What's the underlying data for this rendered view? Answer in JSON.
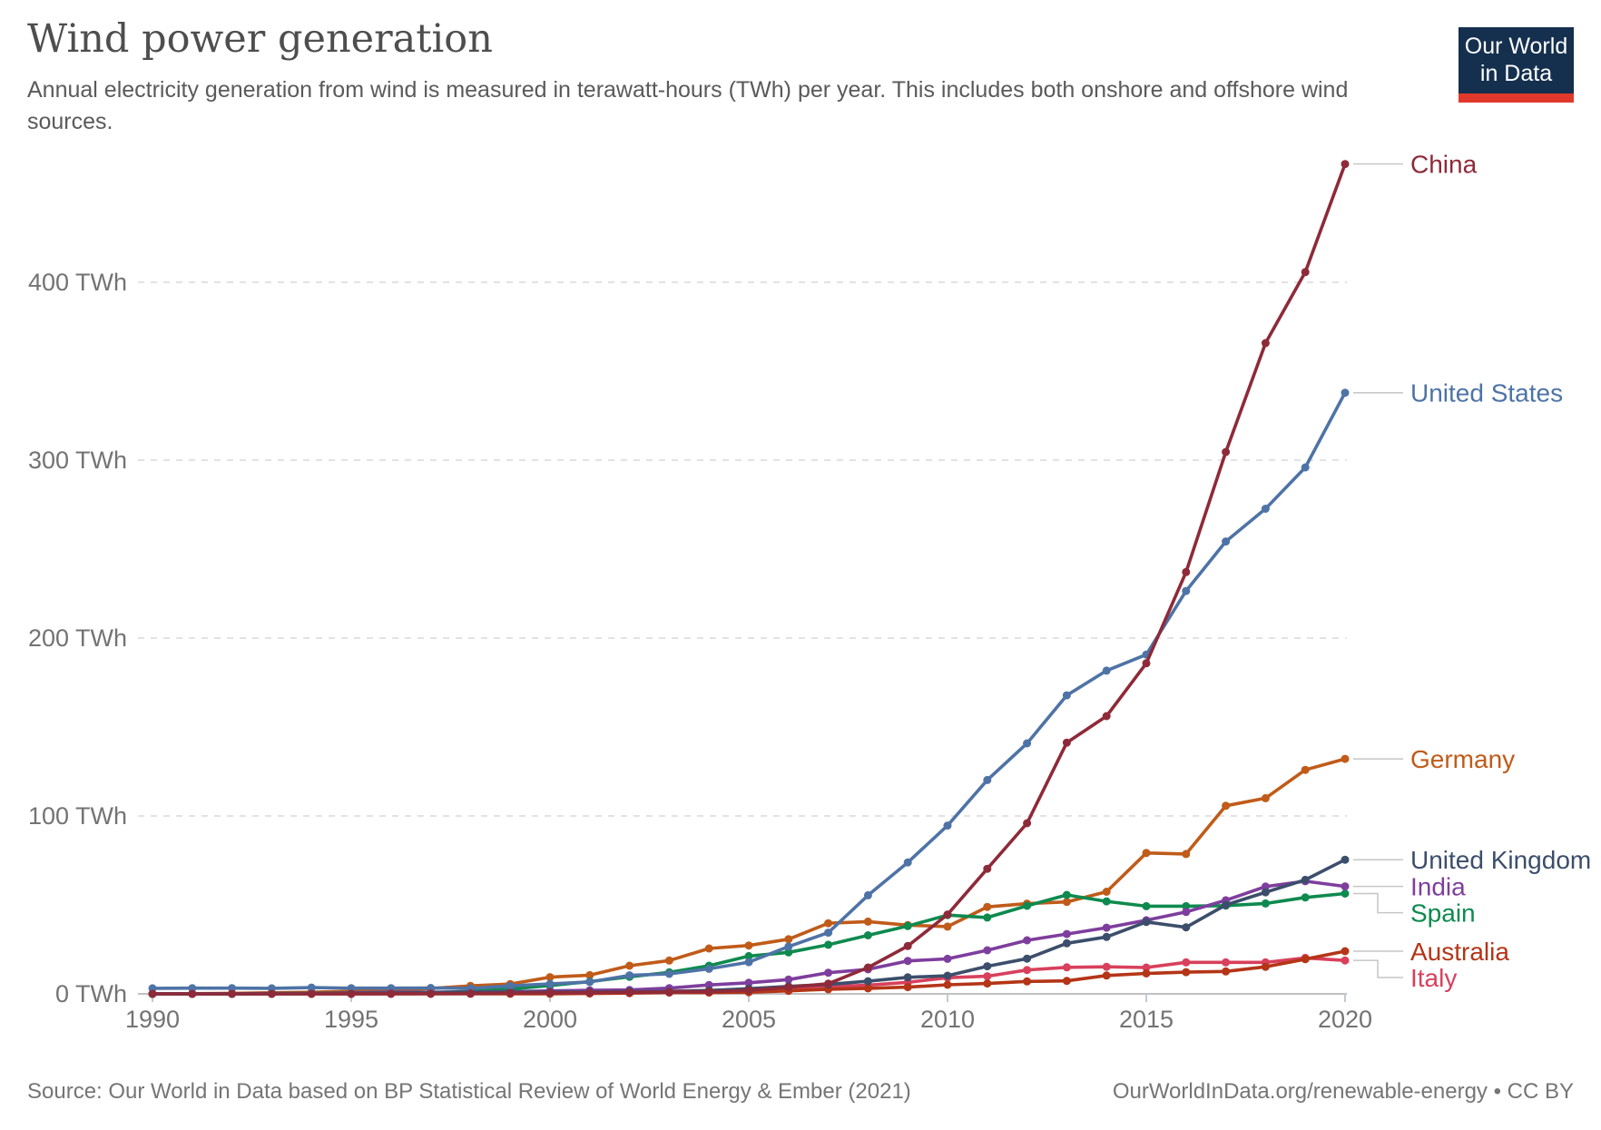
{
  "header": {
    "title": "Wind power generation",
    "subtitle": "Annual electricity generation from wind is measured in terawatt-hours (TWh) per year. This includes both onshore and offshore wind sources."
  },
  "logo": {
    "line1": "Our World",
    "line2": "in Data"
  },
  "footer": {
    "source": "Source: Our World in Data based on BP Statistical Review of World Energy & Ember (2021)",
    "link": "OurWorldInData.org/renewable-energy • CC BY"
  },
  "style": {
    "grid_color": "#d8d8d8",
    "axis_color": "#ababab",
    "tick_mark_color": "#c2cad2",
    "tick_text_color": "#737373",
    "connector_color": "#c6c6c6",
    "logo_bg": "#15304f",
    "logo_bar": "#e0392b"
  },
  "chart_data": {
    "type": "line",
    "title": "Wind power generation",
    "xlabel": "",
    "ylabel": "",
    "xlim": [
      1990,
      2020
    ],
    "ylim": [
      0,
      475
    ],
    "grid": "horizontal-dashed",
    "legend_position": "right-end-labels",
    "y_ticks": [
      0,
      100,
      200,
      300,
      400
    ],
    "y_tick_suffix": " TWh",
    "x_ticks": [
      1990,
      1995,
      2000,
      2005,
      2010,
      2015,
      2020
    ],
    "x": [
      1990,
      1991,
      1992,
      1993,
      1994,
      1995,
      1996,
      1997,
      1998,
      1999,
      2000,
      2001,
      2002,
      2003,
      2004,
      2005,
      2006,
      2007,
      2008,
      2009,
      2010,
      2011,
      2012,
      2013,
      2014,
      2015,
      2016,
      2017,
      2018,
      2019,
      2020
    ],
    "series": [
      {
        "name": "China",
        "color": "#8e2a39",
        "values": [
          0.002,
          0.002,
          0.008,
          0.015,
          0.02,
          0.03,
          0.08,
          0.17,
          0.25,
          0.5,
          0.6,
          0.7,
          0.9,
          1.0,
          1.3,
          2.0,
          3.7,
          5.7,
          14.8,
          26.9,
          44.6,
          70.3,
          95.9,
          141.2,
          156.1,
          185.8,
          237.1,
          304.6,
          365.8,
          405.7,
          466.5
        ]
      },
      {
        "name": "United States",
        "color": "#4e73a6",
        "values": [
          3.1,
          3.2,
          3.2,
          3.1,
          3.5,
          3.2,
          3.2,
          3.3,
          3.1,
          4.5,
          5.6,
          6.7,
          10.4,
          11.2,
          14.1,
          17.8,
          26.6,
          34.4,
          55.4,
          73.9,
          94.6,
          120.2,
          140.8,
          167.8,
          181.7,
          190.7,
          226.5,
          254.3,
          272.7,
          295.9,
          337.9
        ]
      },
      {
        "name": "Germany",
        "color": "#c05b19",
        "values": [
          0.07,
          0.1,
          0.3,
          0.6,
          0.9,
          1.5,
          2.0,
          3.0,
          4.5,
          5.5,
          9.4,
          10.5,
          15.8,
          18.7,
          25.5,
          27.2,
          30.7,
          39.7,
          40.6,
          38.6,
          37.8,
          48.9,
          50.7,
          51.7,
          57.4,
          79.2,
          78.6,
          105.7,
          110.0,
          125.9,
          132.1
        ]
      },
      {
        "name": "United Kingdom",
        "color": "#3c4e6b",
        "values": [
          0.01,
          0.01,
          0.03,
          0.2,
          0.3,
          0.4,
          0.5,
          0.7,
          0.9,
          0.9,
          0.9,
          1.0,
          1.3,
          1.3,
          1.9,
          2.9,
          4.2,
          5.3,
          7.1,
          9.3,
          10.2,
          15.5,
          19.8,
          28.4,
          32.0,
          40.4,
          37.4,
          50.0,
          57.1,
          64.1,
          75.4
        ]
      },
      {
        "name": "India",
        "color": "#7e3e9d",
        "values": [
          0.03,
          0.03,
          0.04,
          0.1,
          0.2,
          0.6,
          0.9,
          0.9,
          1.0,
          1.3,
          1.7,
          2.0,
          2.2,
          3.2,
          5.0,
          6.2,
          8.0,
          11.9,
          13.8,
          18.5,
          19.7,
          24.5,
          30.1,
          33.6,
          37.2,
          41.4,
          46.0,
          52.6,
          60.3,
          63.3,
          60.4
        ]
      },
      {
        "name": "Spain",
        "color": "#0e8a4e",
        "values": [
          0.01,
          0.02,
          0.03,
          0.1,
          0.1,
          0.3,
          0.3,
          0.7,
          1.4,
          2.7,
          4.7,
          6.9,
          9.6,
          12.1,
          15.8,
          21.2,
          23.3,
          27.6,
          32.9,
          38.1,
          44.3,
          42.9,
          49.5,
          55.6,
          52.0,
          49.3,
          49.3,
          49.6,
          50.8,
          54.2,
          56.4
        ]
      },
      {
        "name": "Australia",
        "color": "#b43517",
        "values": [
          0,
          0,
          0,
          0,
          0,
          0,
          0.01,
          0.02,
          0.03,
          0.06,
          0.06,
          0.2,
          0.4,
          0.7,
          0.7,
          0.9,
          1.7,
          2.6,
          3.1,
          3.8,
          5.1,
          5.8,
          7.0,
          7.3,
          10.3,
          11.5,
          12.2,
          12.6,
          15.2,
          19.5,
          24.0
        ]
      },
      {
        "name": "Italy",
        "color": "#d8405c",
        "values": [
          0,
          0,
          0,
          0,
          0.01,
          0.01,
          0.03,
          0.1,
          0.2,
          0.4,
          0.6,
          1.2,
          1.4,
          1.5,
          1.9,
          2.3,
          3.0,
          4.0,
          4.9,
          6.5,
          9.1,
          9.9,
          13.4,
          14.9,
          15.2,
          14.8,
          17.7,
          17.7,
          17.7,
          20.2,
          18.8
        ]
      }
    ]
  }
}
